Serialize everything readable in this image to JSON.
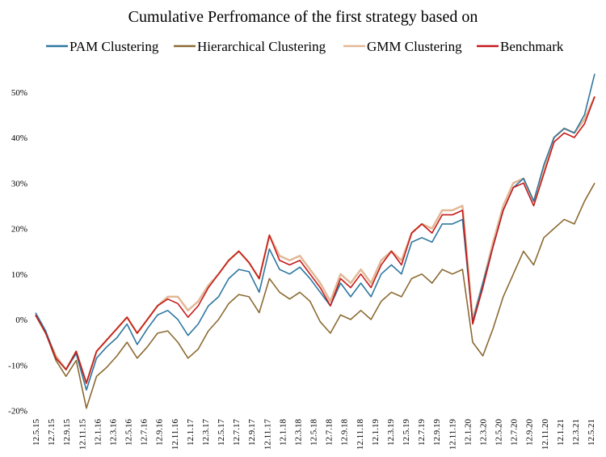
{
  "chart_data": {
    "type": "line",
    "title": "Cumulative Perfromance of the first strategy based on",
    "xlabel": "",
    "ylabel": "",
    "ylim": [
      -20,
      55
    ],
    "y_ticks": [
      -20,
      -10,
      0,
      10,
      20,
      30,
      40,
      50
    ],
    "y_tick_labels": [
      "-20%",
      "-10%",
      "0%",
      "10%",
      "20%",
      "30%",
      "40%",
      "50%"
    ],
    "x_tick_labels": [
      "12.5.15",
      "12.7.15",
      "12.9.15",
      "12.11.15",
      "12.1.16",
      "12.3.16",
      "12.5.16",
      "12.7.16",
      "12.9.16",
      "12.11.16",
      "12.1.17",
      "12.3.17",
      "12.5.17",
      "12.7.17",
      "12.9.17",
      "12.11.17",
      "12.1.18",
      "12.3.18",
      "12.5.18",
      "12.7.18",
      "12.9.18",
      "12.11.18",
      "12.1.19",
      "12.3.19",
      "12.5.19",
      "12.7.19",
      "12.9.19",
      "12.11.19",
      "12.1.20",
      "12.3.20",
      "12.5.20",
      "12.7.20",
      "12.9.20",
      "12.11.20",
      "12.1.21",
      "12.3.21",
      "12.5.21"
    ],
    "grid": false,
    "legend_position": "top",
    "series": [
      {
        "name": "PAM Clustering",
        "color": "#2e77a0",
        "values": [
          1.5,
          -2.5,
          -8.5,
          -11,
          -7.5,
          -15.5,
          -8.5,
          -6,
          -4,
          -1,
          -5.5,
          -2,
          1,
          2,
          0,
          -3.5,
          -1,
          3,
          5,
          9,
          11,
          10.5,
          6,
          15.5,
          11,
          10,
          11.5,
          9,
          6,
          3,
          8,
          5,
          8,
          5,
          10,
          12,
          10,
          17,
          18,
          17,
          21,
          21,
          22,
          -0.5,
          8,
          16,
          24,
          29,
          31,
          26,
          34,
          40,
          42,
          41,
          45,
          54
        ]
      },
      {
        "name": "Hierarchical Clustering",
        "color": "#8c6a32",
        "values": [
          1,
          -3,
          -9,
          -12.5,
          -9,
          -19.5,
          -12.5,
          -10.5,
          -8,
          -5,
          -8.5,
          -6,
          -3,
          -2.5,
          -5,
          -8.5,
          -6.5,
          -2.5,
          0,
          3.5,
          5.5,
          5,
          1.5,
          9,
          6,
          4.5,
          6,
          4,
          -0.5,
          -3,
          1,
          0,
          2,
          0,
          4,
          6,
          5,
          9,
          10,
          8,
          11,
          10,
          11,
          -5,
          -8,
          -2,
          5,
          10,
          15,
          12,
          18,
          20,
          22,
          21,
          26,
          30
        ]
      },
      {
        "name": "GMM Clustering",
        "color": "#e2b896",
        "values": [
          1,
          -3,
          -8,
          -11,
          -7,
          -14,
          -7,
          -4.5,
          -2,
          0.5,
          -3,
          0,
          3,
          5,
          5,
          2,
          4,
          7.5,
          10,
          13,
          15,
          12.5,
          9,
          18.5,
          14,
          13,
          14,
          11,
          8,
          4,
          10,
          8,
          11,
          8,
          13,
          15,
          13,
          19,
          21,
          20,
          24,
          24,
          25,
          0,
          8,
          17,
          25,
          30,
          31,
          26,
          33,
          40,
          42,
          41,
          44,
          49
        ]
      },
      {
        "name": "Benchmark",
        "color": "#c61a1a",
        "values": [
          1,
          -3,
          -8.5,
          -11,
          -7,
          -14,
          -7,
          -4.5,
          -2,
          0.5,
          -3,
          0,
          3,
          4.5,
          3.5,
          0.5,
          3,
          7,
          10,
          13,
          15,
          12.5,
          9,
          18.5,
          13,
          12,
          13,
          10,
          7,
          3,
          9,
          7,
          10,
          7,
          12,
          15,
          12,
          19,
          21,
          19,
          23,
          23,
          24,
          -1,
          7,
          16,
          24,
          29,
          30,
          25,
          32,
          39,
          41,
          40,
          43,
          49
        ]
      }
    ]
  }
}
